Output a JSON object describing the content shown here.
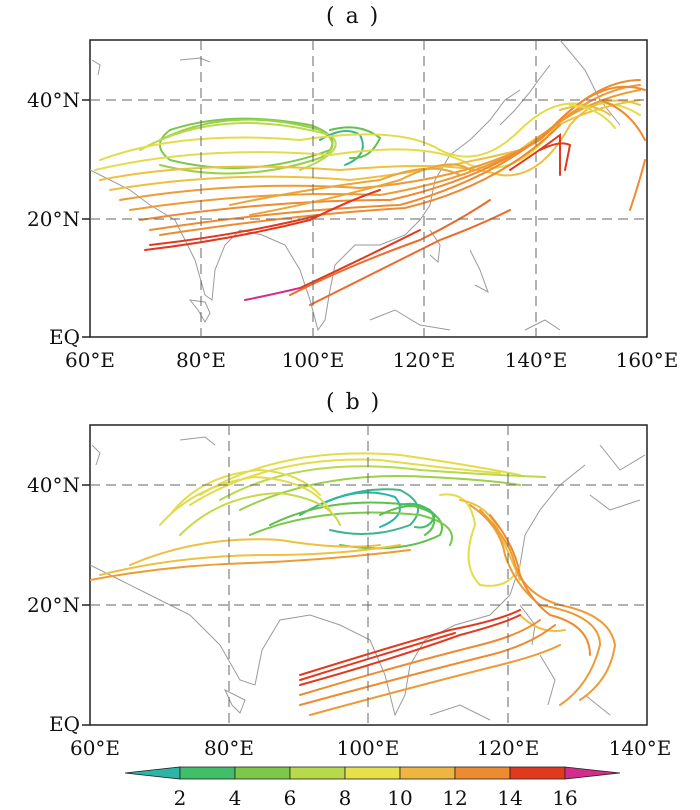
{
  "panels": [
    {
      "label": "( a )",
      "lon_range": [
        60,
        160
      ],
      "lat_range": [
        0,
        50
      ],
      "x_ticks": [
        {
          "value": 60,
          "label": "60°E"
        },
        {
          "value": 80,
          "label": "80°E"
        },
        {
          "value": 100,
          "label": "100°E"
        },
        {
          "value": 120,
          "label": "120°E"
        },
        {
          "value": 140,
          "label": "140°E"
        },
        {
          "value": 160,
          "label": "160°E"
        }
      ],
      "y_ticks": [
        {
          "value": 0,
          "label": "EQ"
        },
        {
          "value": 20,
          "label": "20°N"
        },
        {
          "value": 40,
          "label": "40°N"
        }
      ]
    },
    {
      "label": "( b )",
      "lon_range": [
        60,
        140
      ],
      "lat_range": [
        0,
        50
      ],
      "x_ticks": [
        {
          "value": 60,
          "label": "60°E"
        },
        {
          "value": 80,
          "label": "80°E"
        },
        {
          "value": 100,
          "label": "100°E"
        },
        {
          "value": 120,
          "label": "120°E"
        },
        {
          "value": 140,
          "label": "140°E"
        }
      ],
      "y_ticks": [
        {
          "value": 0,
          "label": "EQ"
        },
        {
          "value": 20,
          "label": "20°N"
        },
        {
          "value": 40,
          "label": "40°N"
        }
      ]
    }
  ],
  "colorbar": {
    "ticks": [
      "2",
      "4",
      "6",
      "8",
      "10",
      "12",
      "14",
      "16"
    ],
    "colors": [
      "#2bb5a7",
      "#3fbf6a",
      "#7cc84a",
      "#b7d94a",
      "#e8e04a",
      "#eeb540",
      "#ee8a30",
      "#e2381e",
      "#d42c8c"
    ]
  },
  "trajectory_colors": {
    "green": "#7cc84a",
    "teal": "#3fb58a",
    "yellow": "#e3dc4a",
    "orange": "#ee9a35",
    "red": "#e23a1e",
    "magenta": "#d42c8c"
  }
}
